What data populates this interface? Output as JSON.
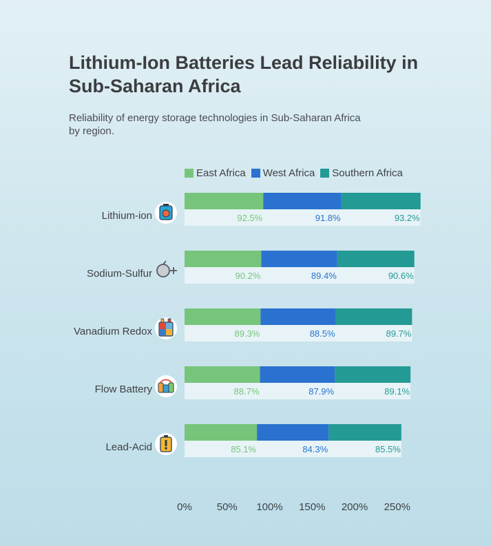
{
  "chart_data": {
    "type": "bar",
    "stacked": true,
    "orientation": "horizontal",
    "title": "Lithium-Ion Batteries Lead Reliability in Sub-Saharan Africa",
    "subtitle": "Reliability of energy storage technologies in Sub-Saharan Africa by region.",
    "categories": [
      "Lithium-ion",
      "Sodium-Sulfur",
      "Vanadium Redox",
      "Flow Battery",
      "Lead-Acid"
    ],
    "category_icons": [
      "battery-icon",
      "magnet-icon",
      "grid-battery-icon",
      "flow-battery-icon",
      "warning-battery-icon"
    ],
    "series": [
      {
        "name": "East Africa",
        "color": "#77c57a",
        "values": [
          92.5,
          90.2,
          89.3,
          88.7,
          85.1
        ],
        "labels": [
          "92.5%",
          "90.2%",
          "89.3%",
          "88.7%",
          "85.1%"
        ]
      },
      {
        "name": "West Africa",
        "color": "#2b72d0",
        "values": [
          91.8,
          89.4,
          88.5,
          87.9,
          84.3
        ],
        "labels": [
          "91.8%",
          "89.4%",
          "88.5%",
          "87.9%",
          "84.3%"
        ]
      },
      {
        "name": "Southern Africa",
        "color": "#249a94",
        "values": [
          93.2,
          90.6,
          89.7,
          89.1,
          85.5
        ],
        "labels": [
          "93.2%",
          "90.6%",
          "89.7%",
          "89.1%",
          "85.5%"
        ]
      }
    ],
    "x_ticks": [
      0,
      50,
      100,
      150,
      200,
      250
    ],
    "x_tick_labels": [
      "0%",
      "50%",
      "100%",
      "150%",
      "200%",
      "250%"
    ],
    "xlim": [
      0,
      277.5
    ],
    "xlabel": "",
    "ylabel": "",
    "grid": false,
    "legend_position": "top"
  }
}
